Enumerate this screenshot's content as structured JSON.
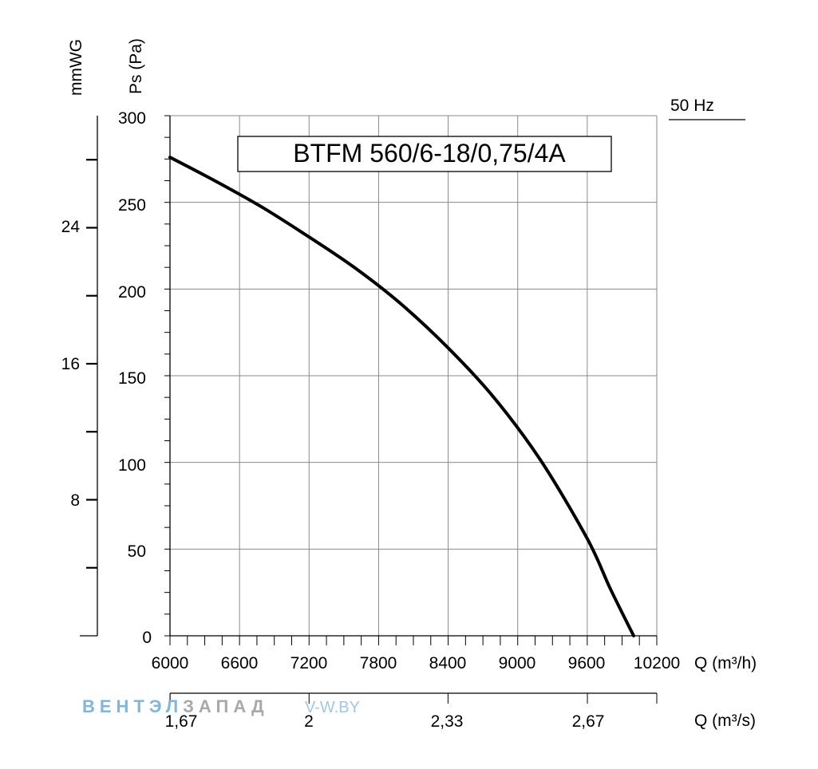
{
  "chart_data": {
    "type": "line",
    "title": "BTFM 560/6-18/0,75/4A",
    "frequency_label": "50 Hz",
    "xlabel": "Q (m³/h)",
    "xlabel_secondary": "Q (m³/s)",
    "ylabel": "Ps (Pa)",
    "ylabel_secondary": "mmWG",
    "xlim": [
      6000,
      10200
    ],
    "ylim": [
      0,
      300
    ],
    "x_ticks": [
      "6000",
      "6600",
      "7200",
      "7800",
      "8400",
      "9000",
      "9600",
      "10200"
    ],
    "y_ticks": [
      "0",
      "50",
      "100",
      "150",
      "200",
      "250",
      "300"
    ],
    "mmwg_ticks": [
      "8",
      "16",
      "24"
    ],
    "m3s_ticks": [
      "1,67",
      "2",
      "2,33",
      "2,67"
    ],
    "grid": true,
    "series": [
      {
        "name": "BTFM 560/6-18/0,75/4A",
        "x": [
          6000,
          6400,
          6800,
          7200,
          7600,
          8000,
          8400,
          8800,
          9200,
          9600,
          9800,
          10000
        ],
        "y": [
          276,
          262,
          247,
          230,
          212,
          191,
          166,
          137,
          101,
          56,
          27,
          0
        ]
      }
    ]
  },
  "watermark": {
    "part1": "ВЕНТЭЛ",
    "part2": "ЗАПАД",
    "part3": "V-W.BY"
  }
}
